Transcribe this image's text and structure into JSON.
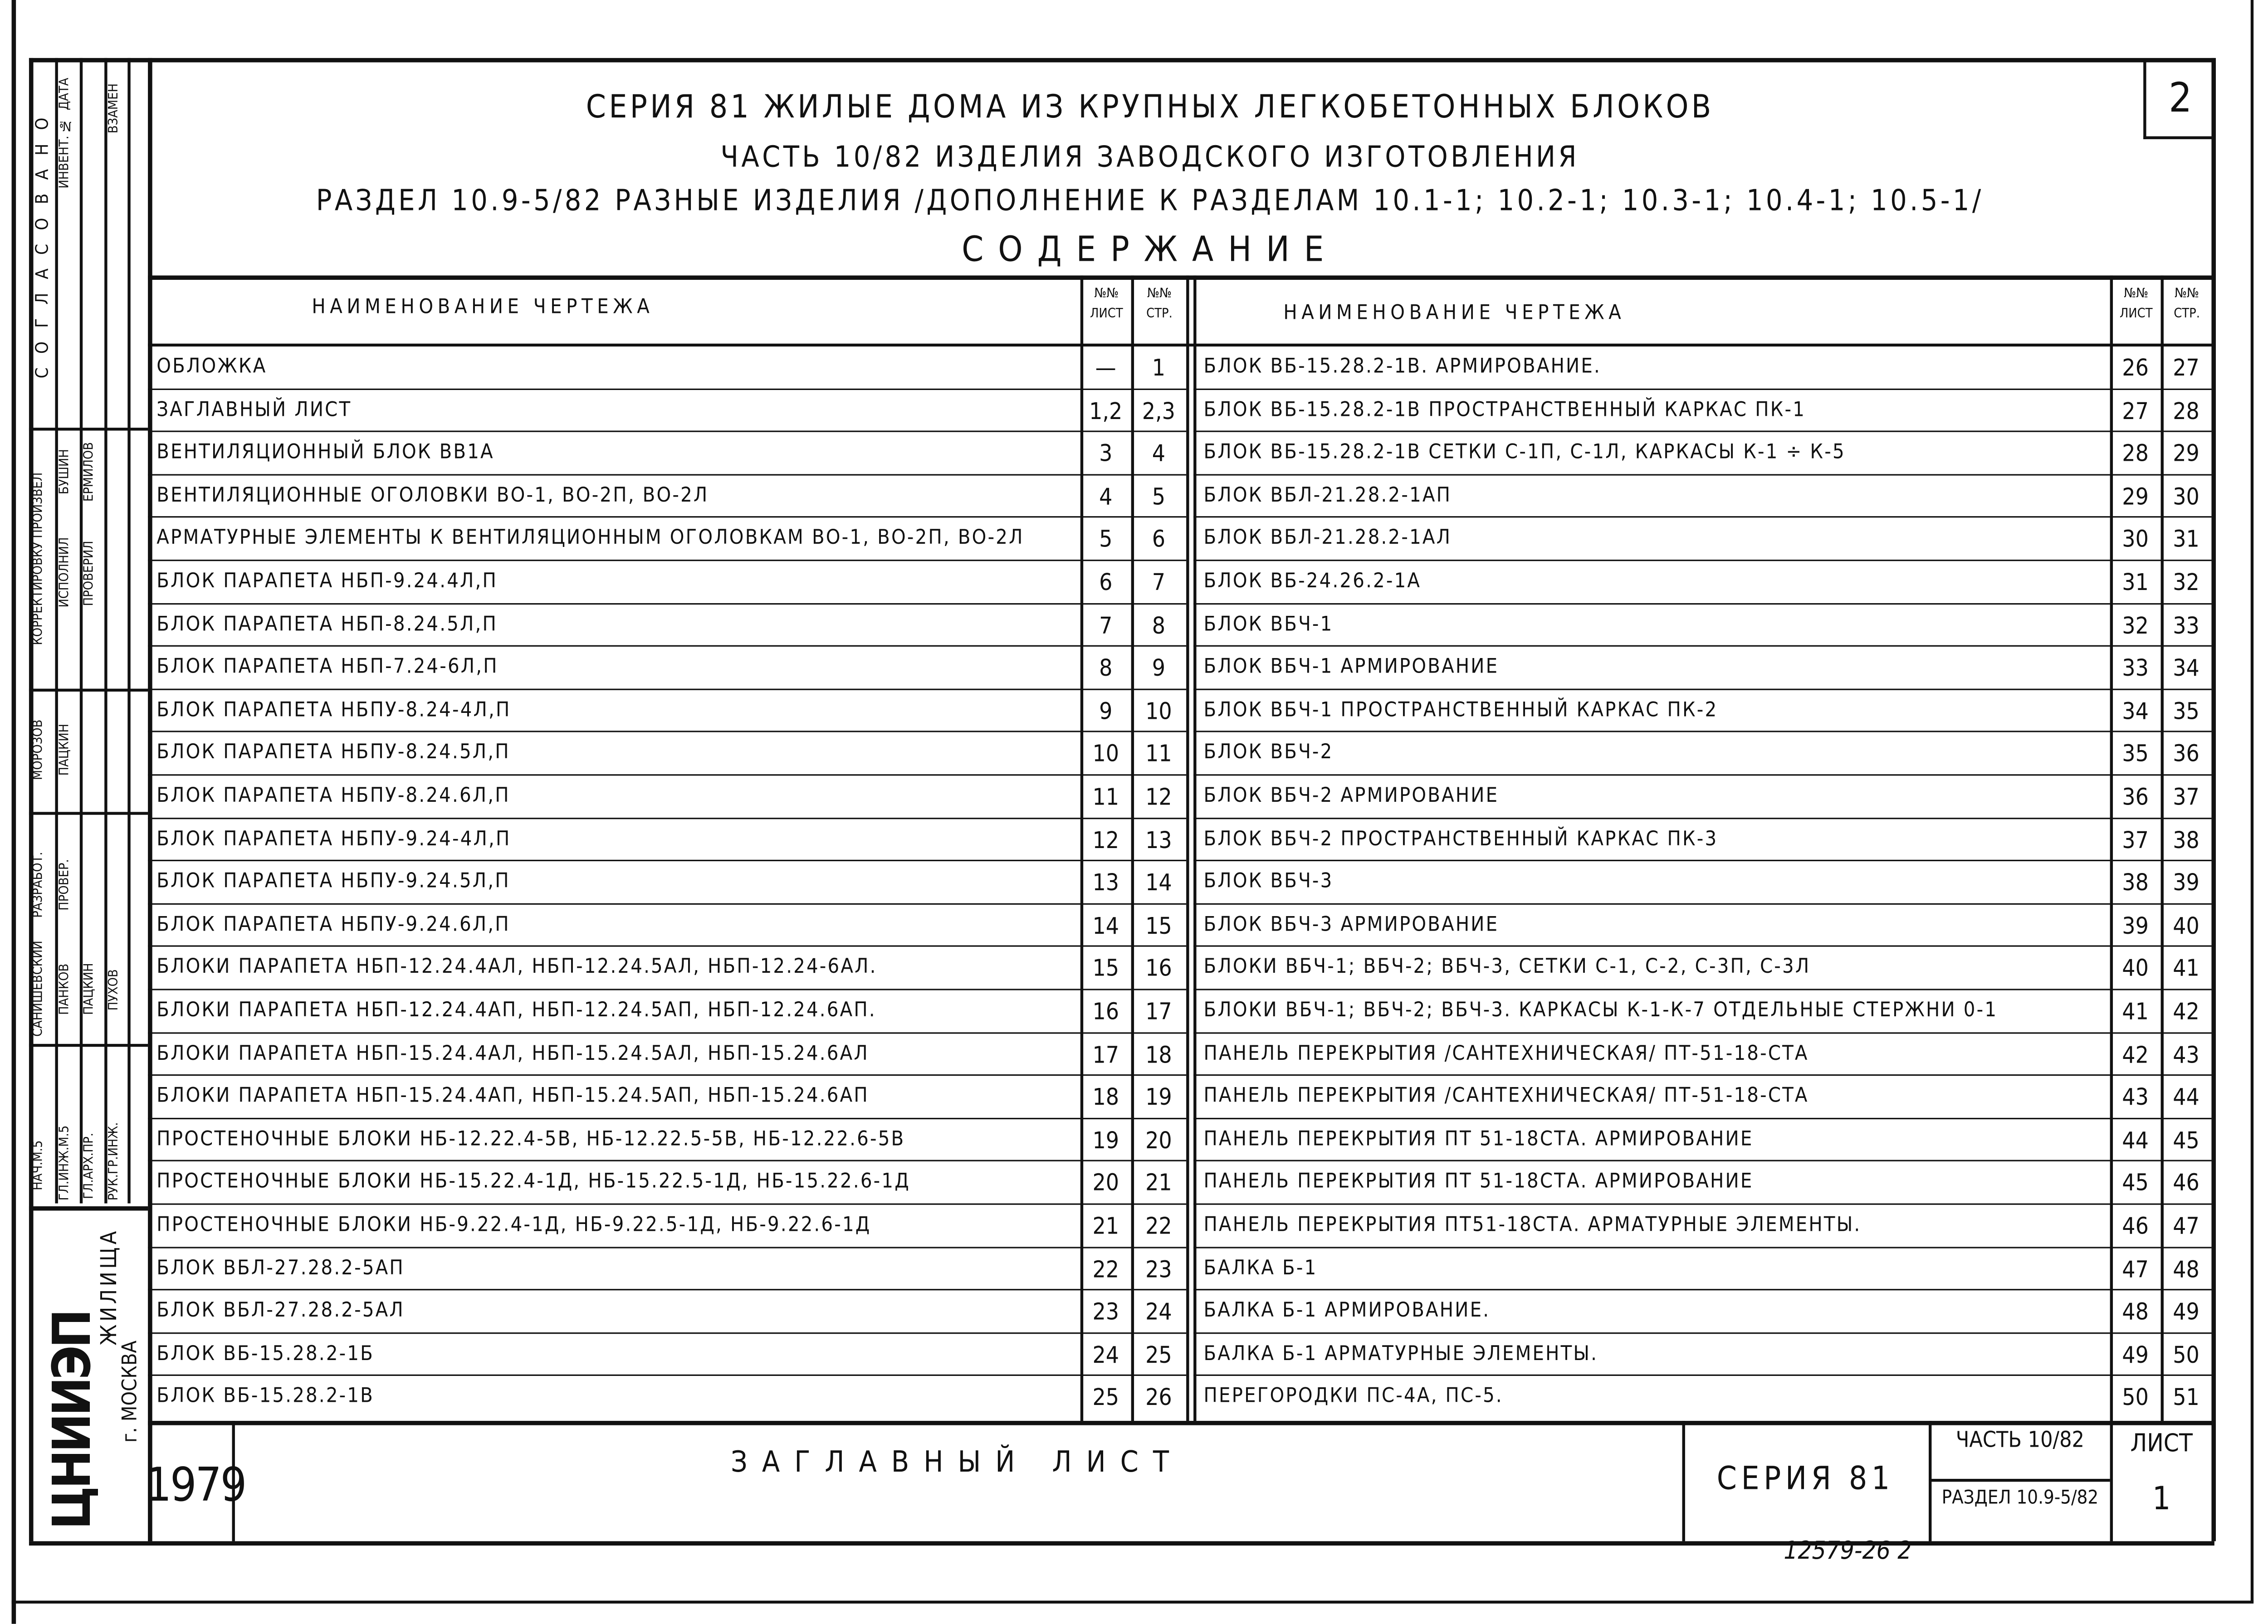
{
  "header": {
    "series_line": "СЕРИЯ 81 ЖИЛЫЕ ДОМА ИЗ КРУПНЫХ ЛЕГКОБЕТОННЫХ БЛОКОВ",
    "part_line": "ЧАСТЬ 10/82 ИЗДЕЛИЯ ЗАВОДСКОГО ИЗГОТОВЛЕНИЯ",
    "section_line": "РАЗДЕЛ 10.9-5/82 РАЗНЫЕ ИЗДЕЛИЯ /ДОПОЛНЕНИЕ К РАЗДЕЛАМ 10.1-1; 10.2-1; 10.3-1; 10.4-1; 10.5-1/",
    "contents_title": "СОДЕРЖАНИЕ",
    "page_number": "2"
  },
  "table": {
    "col_name": "НАИМЕНОВАНИЕ ЧЕРТЕЖА",
    "col_sheet": "№№ ЛИСТ",
    "col_page": "№№ СТР.",
    "left_rows": [
      {
        "name": "ОБЛОЖКА",
        "sheet": "—",
        "page": "1"
      },
      {
        "name": "ЗАГЛАВНЫЙ ЛИСТ",
        "sheet": "1,2",
        "page": "2,3"
      },
      {
        "name": "ВЕНТИЛЯЦИОННЫЙ БЛОК ВВ1А",
        "sheet": "3",
        "page": "4"
      },
      {
        "name": "ВЕНТИЛЯЦИОННЫЕ ОГОЛОВКИ ВО-1, ВО-2П, ВО-2Л",
        "sheet": "4",
        "page": "5"
      },
      {
        "name": "АРМАТУРНЫЕ ЭЛЕМЕНТЫ К ВЕНТИЛЯЦИОННЫМ ОГОЛОВКАМ ВО-1, ВО-2П, ВО-2Л",
        "sheet": "5",
        "page": "6"
      },
      {
        "name": "БЛОК ПАРАПЕТА НБП-9.24.4Л,П",
        "sheet": "6",
        "page": "7"
      },
      {
        "name": "БЛОК ПАРАПЕТА НБП-8.24.5Л,П",
        "sheet": "7",
        "page": "8"
      },
      {
        "name": "БЛОК ПАРАПЕТА НБП-7.24-6Л,П",
        "sheet": "8",
        "page": "9"
      },
      {
        "name": "БЛОК ПАРАПЕТА НБПУ-8.24-4Л,П",
        "sheet": "9",
        "page": "10"
      },
      {
        "name": "БЛОК ПАРАПЕТА НБПУ-8.24.5Л,П",
        "sheet": "10",
        "page": "11"
      },
      {
        "name": "БЛОК ПАРАПЕТА НБПУ-8.24.6Л,П",
        "sheet": "11",
        "page": "12"
      },
      {
        "name": "БЛОК ПАРАПЕТА НБПУ-9.24-4Л,П",
        "sheet": "12",
        "page": "13"
      },
      {
        "name": "БЛОК ПАРАПЕТА НБПУ-9.24.5Л,П",
        "sheet": "13",
        "page": "14"
      },
      {
        "name": "БЛОК ПАРАПЕТА НБПУ-9.24.6Л,П",
        "sheet": "14",
        "page": "15"
      },
      {
        "name": "БЛОКИ ПАРАПЕТА НБП-12.24.4АЛ, НБП-12.24.5АЛ, НБП-12.24-6АЛ.",
        "sheet": "15",
        "page": "16"
      },
      {
        "name": "БЛОКИ ПАРАПЕТА НБП-12.24.4АП, НБП-12.24.5АП, НБП-12.24.6АП.",
        "sheet": "16",
        "page": "17"
      },
      {
        "name": "БЛОКИ ПАРАПЕТА НБП-15.24.4АЛ, НБП-15.24.5АЛ, НБП-15.24.6АЛ",
        "sheet": "17",
        "page": "18"
      },
      {
        "name": "БЛОКИ ПАРАПЕТА НБП-15.24.4АП, НБП-15.24.5АП, НБП-15.24.6АП",
        "sheet": "18",
        "page": "19"
      },
      {
        "name": "ПРОСТЕНОЧНЫЕ БЛОКИ НБ-12.22.4-5В, НБ-12.22.5-5В, НБ-12.22.6-5В",
        "sheet": "19",
        "page": "20"
      },
      {
        "name": "ПРОСТЕНОЧНЫЕ БЛОКИ НБ-15.22.4-1Д, НБ-15.22.5-1Д, НБ-15.22.6-1Д",
        "sheet": "20",
        "page": "21"
      },
      {
        "name": "ПРОСТЕНОЧНЫЕ БЛОКИ НБ-9.22.4-1Д, НБ-9.22.5-1Д, НБ-9.22.6-1Д",
        "sheet": "21",
        "page": "22"
      },
      {
        "name": "БЛОК ВБЛ-27.28.2-5АП",
        "sheet": "22",
        "page": "23"
      },
      {
        "name": "БЛОК ВБЛ-27.28.2-5АЛ",
        "sheet": "23",
        "page": "24"
      },
      {
        "name": "БЛОК ВБ-15.28.2-1Б",
        "sheet": "24",
        "page": "25"
      },
      {
        "name": "БЛОК ВБ-15.28.2-1В",
        "sheet": "25",
        "page": "26"
      }
    ],
    "right_rows": [
      {
        "name": "БЛОК ВБ-15.28.2-1В. АРМИРОВАНИЕ.",
        "sheet": "26",
        "page": "27"
      },
      {
        "name": "БЛОК ВБ-15.28.2-1В ПРОСТРАНСТВЕННЫЙ КАРКАС ПК-1",
        "sheet": "27",
        "page": "28"
      },
      {
        "name": "БЛОК ВБ-15.28.2-1В СЕТКИ С-1П, С-1Л, КАРКАСЫ К-1 ÷ К-5",
        "sheet": "28",
        "page": "29"
      },
      {
        "name": "БЛОК ВБЛ-21.28.2-1АП",
        "sheet": "29",
        "page": "30"
      },
      {
        "name": "БЛОК ВБЛ-21.28.2-1АЛ",
        "sheet": "30",
        "page": "31"
      },
      {
        "name": "БЛОК ВБ-24.26.2-1А",
        "sheet": "31",
        "page": "32"
      },
      {
        "name": "БЛОК ВБЧ-1",
        "sheet": "32",
        "page": "33"
      },
      {
        "name": "БЛОК ВБЧ-1 АРМИРОВАНИЕ",
        "sheet": "33",
        "page": "34"
      },
      {
        "name": "БЛОК ВБЧ-1 ПРОСТРАНСТВЕННЫЙ КАРКАС ПК-2",
        "sheet": "34",
        "page": "35"
      },
      {
        "name": "БЛОК ВБЧ-2",
        "sheet": "35",
        "page": "36"
      },
      {
        "name": "БЛОК ВБЧ-2 АРМИРОВАНИЕ",
        "sheet": "36",
        "page": "37"
      },
      {
        "name": "БЛОК ВБЧ-2 ПРОСТРАНСТВЕННЫЙ КАРКАС ПК-3",
        "sheet": "37",
        "page": "38"
      },
      {
        "name": "БЛОК ВБЧ-3",
        "sheet": "38",
        "page": "39"
      },
      {
        "name": "БЛОК ВБЧ-3 АРМИРОВАНИЕ",
        "sheet": "39",
        "page": "40"
      },
      {
        "name": "БЛОКИ ВБЧ-1; ВБЧ-2; ВБЧ-3, СЕТКИ С-1, С-2, С-3П, С-3Л",
        "sheet": "40",
        "page": "41"
      },
      {
        "name": "БЛОКИ ВБЧ-1; ВБЧ-2; ВБЧ-3. КАРКАСЫ К-1-К-7 ОТДЕЛЬНЫЕ СТЕРЖНИ 0-1",
        "sheet": "41",
        "page": "42"
      },
      {
        "name": "ПАНЕЛЬ ПЕРЕКРЫТИЯ /САНТЕХНИЧЕСКАЯ/ ПТ-51-18-СТА",
        "sheet": "42",
        "page": "43"
      },
      {
        "name": "ПАНЕЛЬ ПЕРЕКРЫТИЯ /САНТЕХНИЧЕСКАЯ/ ПТ-51-18-СТА",
        "sheet": "43",
        "page": "44"
      },
      {
        "name": "ПАНЕЛЬ ПЕРЕКРЫТИЯ ПТ 51-18СТА. АРМИРОВАНИЕ",
        "sheet": "44",
        "page": "45"
      },
      {
        "name": "ПАНЕЛЬ ПЕРЕКРЫТИЯ ПТ 51-18СТА. АРМИРОВАНИЕ",
        "sheet": "45",
        "page": "46"
      },
      {
        "name": "ПАНЕЛЬ ПЕРЕКРЫТИЯ ПТ51-18СТА. АРМАТУРНЫЕ ЭЛЕМЕНТЫ.",
        "sheet": "46",
        "page": "47"
      },
      {
        "name": "БАЛКА Б-1",
        "sheet": "47",
        "page": "48"
      },
      {
        "name": "БАЛКА Б-1 АРМИРОВАНИЕ.",
        "sheet": "48",
        "page": "49"
      },
      {
        "name": "БАЛКА Б-1 АРМАТУРНЫЕ ЭЛЕМЕНТЫ.",
        "sheet": "49",
        "page": "50"
      },
      {
        "name": "ПЕРЕГОРОДКИ ПС-4А, ПС-5.",
        "sheet": "50",
        "page": "51"
      }
    ]
  },
  "title_block": {
    "year": "1979",
    "drawing_title": "ЗАГЛАВНЫЙ ЛИСТ",
    "series": "СЕРИЯ 81",
    "part": "ЧАСТЬ 10/82",
    "section": "РАЗДЕЛ 10.9-5/82",
    "sheet_label": "ЛИСТ",
    "sheet_number": "1",
    "archive_number": "12579-26 2"
  },
  "side_stamp": {
    "agreed": "С О Г Л А С О В А Н О",
    "date": "ДАТА",
    "inventory": "ИНВЕНТ. №",
    "replaces": "ВЗАМЕН",
    "corrected_by": "КОРРЕКТИРОВКУ ПРОИЗВЕЛ",
    "performed": "ИСПОЛНИЛ",
    "checked": "ПРОВЕРИЛ",
    "name_bushin": "БУШИН",
    "name_ermilov": "ЕРМИЛОВ",
    "name_morozov": "МОРОЗОВ",
    "name_packin": "ПАЦКИН",
    "developed": "РАЗРАБОТ.",
    "checked2": "ПРОВЕР.",
    "name_sanishevsky": "САНИШЕВСКИЙ",
    "name_pankov": "ПАНКОВ",
    "name_packin2": "ПАЦКИН",
    "name_puhov": "ПУХОВ",
    "head_m5": "НАЧ.М.5",
    "chief_eng": "ГЛ.ИНЖ.М.5",
    "chief_arch": "ГЛ.АРХ.ПР.",
    "group_lead": "РУК.ГР.ИНЖ.",
    "org_name": "ЦНИИЭП",
    "org_sub": "ЖИЛИЩА",
    "city": "г. МОСКВА"
  }
}
